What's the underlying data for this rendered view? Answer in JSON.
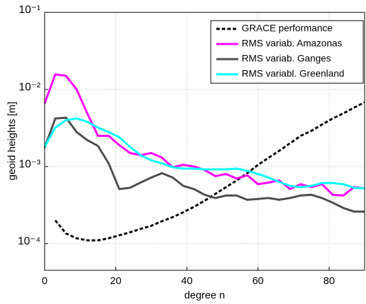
{
  "chart_data": {
    "type": "line",
    "x_label": "degree n",
    "y_label": "geoid heights [m]",
    "x": [
      0,
      3,
      6,
      9,
      12,
      15,
      18,
      21,
      24,
      27,
      30,
      33,
      36,
      39,
      42,
      45,
      48,
      51,
      54,
      57,
      60,
      63,
      66,
      69,
      72,
      75,
      78,
      81,
      84,
      87,
      90
    ],
    "series": [
      {
        "name": "GRACE performance",
        "color": "#000000",
        "dash": true,
        "values": [
          null,
          0.0002,
          0.000135,
          0.000117,
          0.00011,
          0.00011,
          0.000117,
          0.000128,
          0.00014,
          0.000155,
          0.00017,
          0.000195,
          0.00022,
          0.000255,
          0.0003,
          0.00036,
          0.00044,
          0.00054,
          0.00066,
          0.00082,
          0.00105,
          0.0013,
          0.0016,
          0.002,
          0.0025,
          0.0029,
          0.0035,
          0.0042,
          0.0049,
          0.0058,
          0.0068
        ]
      },
      {
        "name": "RMS variab. Amazonas",
        "color": "#ff00ff",
        "dash": false,
        "values": [
          0.0066,
          0.0157,
          0.015,
          0.01,
          0.0049,
          0.0025,
          0.0025,
          0.0019,
          0.0015,
          0.0014,
          0.0015,
          0.0013,
          0.00098,
          0.00105,
          0.001,
          0.0009,
          0.00075,
          0.0008,
          0.0007,
          0.00077,
          0.00059,
          0.00062,
          0.00066,
          0.00051,
          0.00059,
          0.00054,
          0.00059,
          0.00043,
          0.00042,
          0.00054,
          0.00052
        ]
      },
      {
        "name": "RMS variab. Ganges",
        "color": "#4d4d4d",
        "dash": false,
        "values": [
          0.00175,
          0.0042,
          0.0043,
          0.0028,
          0.0022,
          0.00185,
          0.0011,
          0.00051,
          0.00053,
          0.00062,
          0.00072,
          0.00082,
          0.00072,
          0.00056,
          0.00051,
          0.00043,
          0.00039,
          0.00042,
          0.00042,
          0.00037,
          0.00038,
          0.00039,
          0.00037,
          0.00039,
          0.00042,
          0.00043,
          0.00039,
          0.00034,
          0.00029,
          0.00026,
          0.00026
        ]
      },
      {
        "name": "RMS variabl. Greenland",
        "color": "#00ffff",
        "dash": false,
        "values": [
          0.0018,
          0.0032,
          0.004,
          0.0042,
          0.0038,
          0.0032,
          0.0028,
          0.0024,
          0.0018,
          0.0014,
          0.0012,
          0.0011,
          0.00098,
          0.00094,
          0.00094,
          0.00092,
          0.00092,
          0.00092,
          0.00094,
          0.00088,
          0.0008,
          0.00072,
          0.00063,
          0.00056,
          0.00054,
          0.00056,
          0.00061,
          0.00061,
          0.00059,
          0.00053,
          0.00052
        ]
      }
    ],
    "xlim": [
      0,
      90
    ],
    "xticks": [
      0,
      20,
      40,
      60,
      80
    ],
    "ylim": [
      4.5e-05,
      0.1
    ],
    "log_y": true,
    "yticks": [
      {
        "value": 0.1,
        "label": "10⁻¹"
      },
      {
        "value": 0.01,
        "label": "10⁻²"
      },
      {
        "value": 0.001,
        "label": "10⁻³"
      },
      {
        "value": 0.0001,
        "label": "10⁻⁴"
      }
    ],
    "grid": true,
    "legend": "upper right"
  }
}
